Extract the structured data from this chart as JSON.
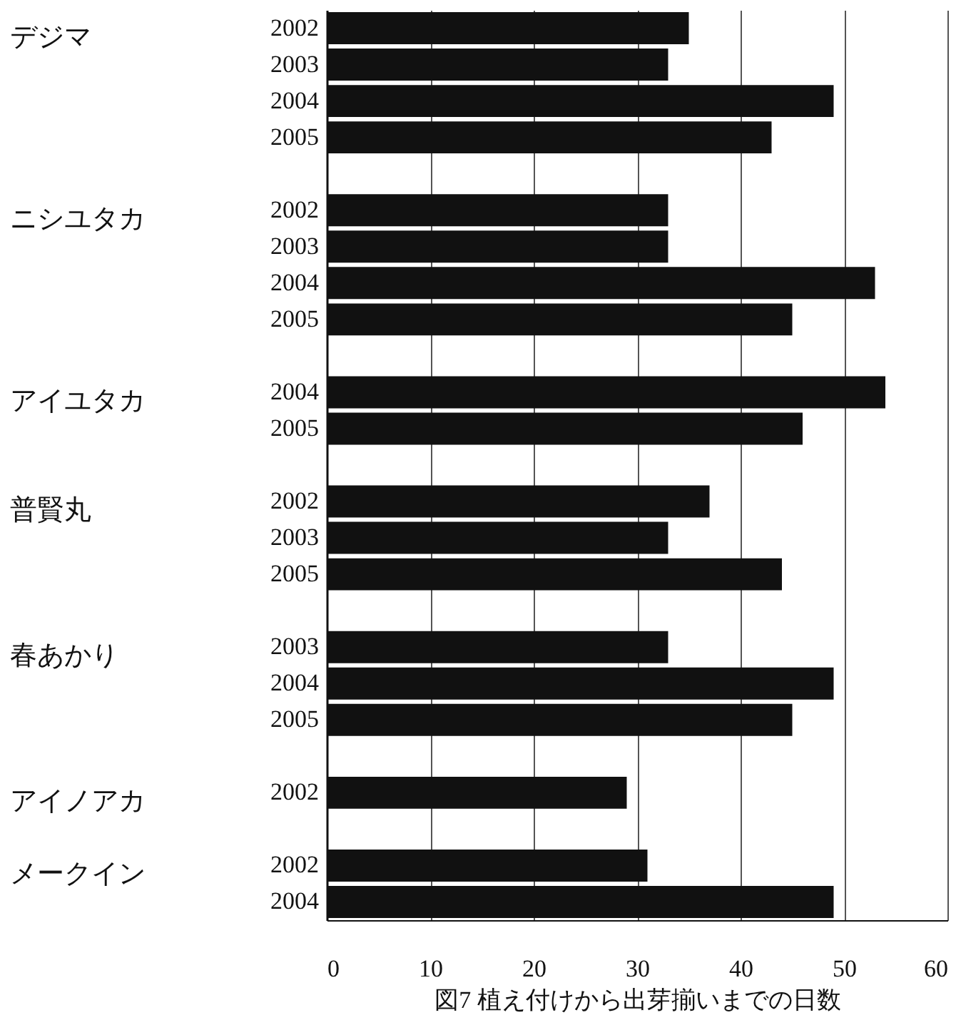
{
  "chart_data": {
    "type": "bar",
    "orientation": "horizontal",
    "xlabel": "図7  植え付けから出芽揃いまでの日数",
    "categories": [
      "2002",
      "2003",
      "2004",
      "2005",
      null,
      "2002",
      "2003",
      "2004",
      "2005",
      null,
      "2004",
      "2005",
      null,
      "2002",
      "2003",
      "2005",
      null,
      "2003",
      "2004",
      "2005",
      null,
      "2002",
      null,
      "2002",
      "2004"
    ],
    "values": [
      35,
      33,
      49,
      43,
      null,
      33,
      33,
      53,
      45,
      null,
      54,
      46,
      null,
      37,
      33,
      44,
      null,
      33,
      49,
      45,
      null,
      29,
      null,
      31,
      49
    ],
    "color": "#111111",
    "annotations": [
      "デジマ",
      "ニシユタカ",
      "アイユタカ",
      "普賢丸",
      "春あかり",
      "アイノアカ",
      "メークイン"
    ],
    "xlim": [
      0,
      60
    ],
    "xticks": [
      0,
      10,
      20,
      30,
      40,
      50,
      60
    ],
    "grid": "x"
  }
}
